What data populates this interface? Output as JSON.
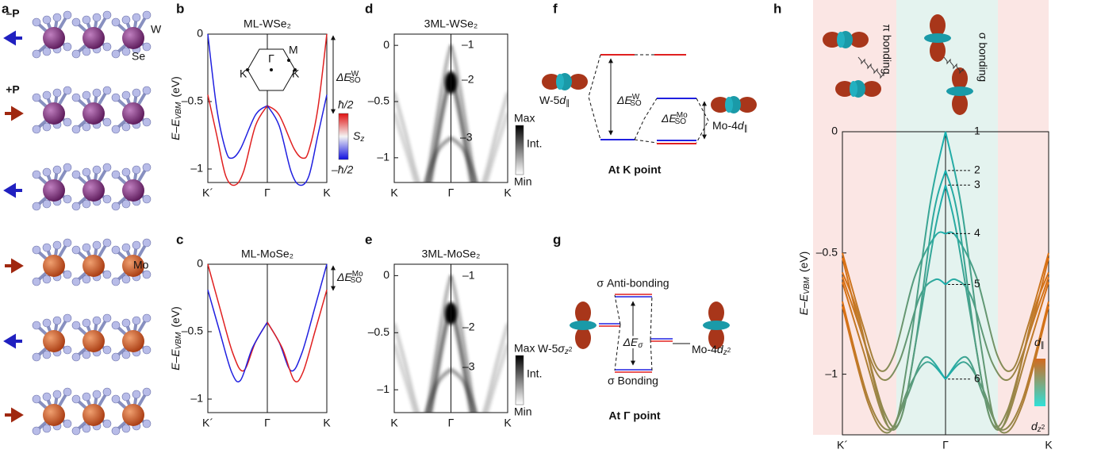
{
  "panel_labels": [
    "a",
    "b",
    "c",
    "d",
    "e",
    "f",
    "g",
    "h"
  ],
  "a": {
    "minus_p": "–P",
    "plus_p": "+P",
    "w": "W",
    "se": "Se",
    "mo": "Mo"
  },
  "b": {
    "title": "ML-WSe₂",
    "ylabel": {
      "main": "E–E",
      "sub": "VBM",
      "unit": "(eV)"
    },
    "ylim": [
      -1.1,
      0
    ],
    "yticks": [
      0,
      {
        "value": -0.5,
        "label": "–0.5"
      },
      {
        "value": -1,
        "label": "–1"
      }
    ],
    "x_labels": [
      "K´",
      "Γ",
      "K"
    ],
    "delta": {
      "main": "ΔE",
      "sub": "SO",
      "sup": "W"
    },
    "bz": [
      "Γ",
      "M",
      "K´",
      "K"
    ],
    "colorbar": {
      "top": "ħ/2",
      "label": "S",
      "label_sub": "z",
      "bottom": "–ħ/2"
    }
  },
  "c": {
    "title": "ML-MoSe₂",
    "ylabel": {
      "main": "E–E",
      "sub": "VBM",
      "unit": "(eV)"
    },
    "ylim": [
      -1.1,
      0
    ],
    "yticks": [
      0,
      {
        "value": -0.5,
        "label": "–0.5"
      },
      {
        "value": -1,
        "label": "–1"
      }
    ],
    "x_labels": [
      "K´",
      "Γ",
      "K"
    ],
    "delta": {
      "main": "ΔE",
      "sub": "SO",
      "sup": "Mo"
    }
  },
  "d": {
    "title": "3ML-WSe₂",
    "ylim": [
      -1.22,
      0.1
    ],
    "yticks": [
      0,
      {
        "value": -0.5,
        "label": "–0.5"
      },
      {
        "value": -1,
        "label": "–1"
      }
    ],
    "x_labels": [
      "K",
      "Γ",
      "K"
    ],
    "band_labels": [
      "–1",
      "–2",
      "–3"
    ],
    "colorbar": {
      "top": "Max",
      "mid": "Int.",
      "bottom": "Min"
    }
  },
  "e": {
    "title": "3ML-MoSe₂",
    "ylim": [
      -1.2,
      0.1
    ],
    "yticks": [
      0,
      {
        "value": -0.5,
        "label": "–0.5"
      },
      {
        "value": -1,
        "label": "–1"
      }
    ],
    "x_labels": [
      "K",
      "Γ",
      "K"
    ],
    "band_labels": [
      "–1",
      "–2",
      "–3"
    ],
    "colorbar": {
      "top": "Max",
      "mid": "Int.",
      "bottom": "Min"
    }
  },
  "f": {
    "w": {
      "main": "W-5",
      "orb": "d",
      "sub": "∥"
    },
    "mo": {
      "main": "Mo-4",
      "orb": "d",
      "sub": "∥"
    },
    "delta_w": {
      "main": "ΔE",
      "sub": "SO",
      "sup": "W"
    },
    "delta_mo": {
      "main": "ΔE",
      "sub": "SO",
      "sup": "Mo"
    },
    "caption": "At K point"
  },
  "g": {
    "anti": "σ Anti-bonding",
    "bond": "σ Bonding",
    "delta": {
      "main": "ΔE",
      "sub": "σ"
    },
    "w": {
      "main": "W-5",
      "orb": "σ",
      "sub": "z",
      "sup": "2"
    },
    "mo": {
      "main": "Mo-4",
      "orb": "d",
      "sub": "z",
      "sup": "2"
    },
    "caption": "At Γ point"
  },
  "h": {
    "ylabel": {
      "main": "E–E",
      "sub": "VBM",
      "unit": "(eV)"
    },
    "ylim": [
      -1.25,
      0
    ],
    "yticks": [
      0,
      {
        "value": -0.5,
        "label": "–0.5"
      },
      {
        "value": -1,
        "label": "–1"
      }
    ],
    "x_labels": [
      "K´",
      "Γ",
      "K"
    ],
    "band_labels": [
      "1",
      "2",
      "3",
      "4",
      "5",
      "6"
    ],
    "pi": "π bonding",
    "sigma": "σ bonding",
    "colorbar": {
      "top": "d",
      "top_sub": "∥",
      "bottom": "d",
      "bottom_sub": "z",
      "bottom_sup": "2"
    }
  }
}
